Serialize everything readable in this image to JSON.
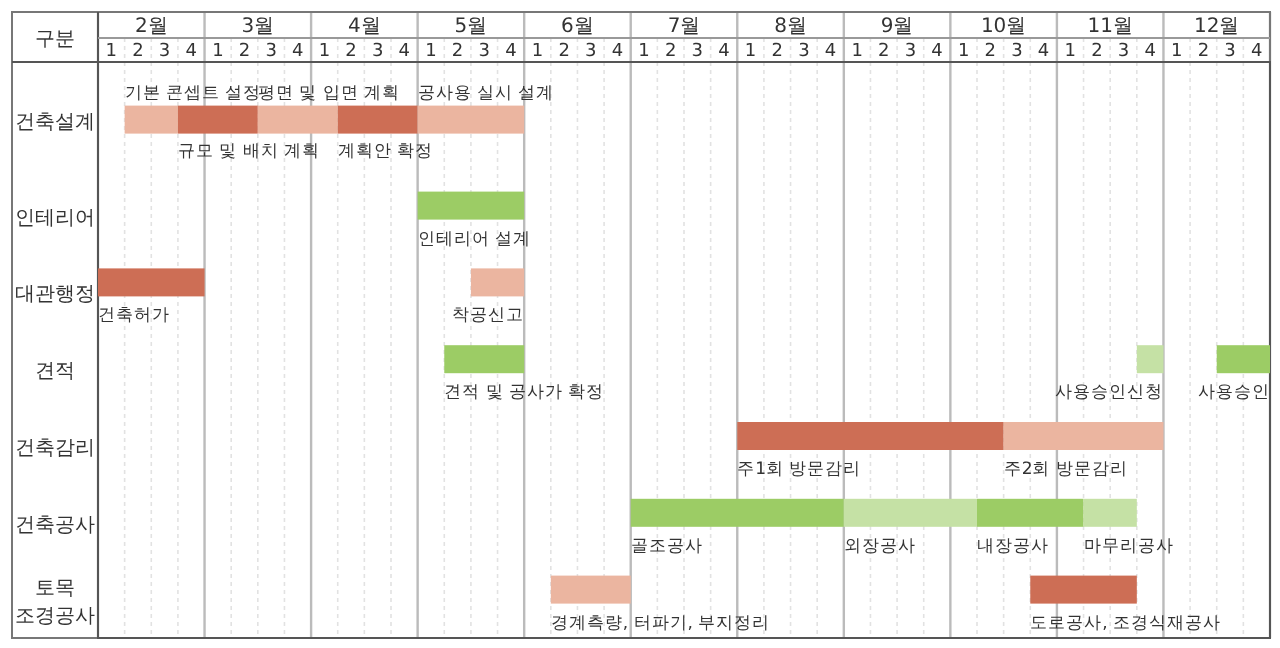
{
  "chart_data": {
    "type": "bar",
    "orientation": "horizontal",
    "ylabel": "구분",
    "categories": [
      "건축설계",
      "인테리어",
      "대관행정",
      "견적",
      "건축감리",
      "건축공사",
      "토목\n조경공사"
    ],
    "xlim": [
      1.5,
      12.5
    ],
    "xticks": [
      {
        "value": 2,
        "label": "2월"
      },
      {
        "value": 3,
        "label": "3월"
      },
      {
        "value": 4,
        "label": "4월"
      },
      {
        "value": 5,
        "label": "5월"
      },
      {
        "value": 6,
        "label": "6월"
      },
      {
        "value": 7,
        "label": "7월"
      },
      {
        "value": 8,
        "label": "8월"
      },
      {
        "value": 9,
        "label": "9월"
      },
      {
        "value": 10,
        "label": "10월"
      },
      {
        "value": 11,
        "label": "11월"
      },
      {
        "value": 12,
        "label": "12월"
      }
    ],
    "grid": "x",
    "series": [
      {
        "base": [
          1.75,
          4.5,
          1.5,
          4.75,
          7.5,
          6.5,
          5.75
        ],
        "values": [
          0.5,
          1,
          1,
          0.75,
          2.5,
          2,
          0.75
        ],
        "colors": [
          "#ebb5a0",
          "#9ccc65",
          "#cd6e55",
          "#9ccc65",
          "#cd6e55",
          "#9ccc65",
          "#ebb5a0"
        ]
      },
      {
        "base": [
          2.25,
          null,
          5,
          11.25,
          10,
          8.5,
          10.25
        ],
        "values": [
          0.75,
          null,
          0.5,
          0.25,
          1.5,
          1.25,
          1
        ],
        "colors": [
          "#cd6e55",
          null,
          "#ebb5a0",
          "#c5e1a5",
          "#ebb5a0",
          "#c5e1a5",
          "#cd6e55"
        ]
      },
      {
        "base": [
          3,
          null,
          null,
          12,
          null,
          9.75,
          null
        ],
        "values": [
          0.75,
          null,
          null,
          0.5,
          null,
          1,
          null
        ],
        "colors": [
          "#ebb5a0",
          null,
          null,
          "#9ccc65",
          null,
          "#9ccc65",
          null
        ]
      },
      {
        "base": [
          3.75,
          null,
          null,
          null,
          null,
          10.75,
          null
        ],
        "values": [
          0.75,
          null,
          null,
          null,
          null,
          0.5,
          null
        ],
        "colors": [
          "#cd6e55",
          null,
          null,
          null,
          null,
          "#c5e1a5",
          null
        ]
      },
      {
        "base": [
          4.5,
          null,
          null,
          null,
          null,
          null,
          null
        ],
        "values": [
          1,
          null,
          null,
          null,
          null,
          null,
          null
        ],
        "colors": [
          "#ebb5a0",
          null,
          null,
          null,
          null,
          null,
          null
        ]
      }
    ],
    "annotations": [
      {
        "text": "기본 콘셉트 설정",
        "x": 1.75,
        "y": "건축설계"
      },
      {
        "text": "규모 및 배치 계획",
        "x": 2.25,
        "y": "건축설계"
      },
      {
        "text": "평면 및 입면 계획",
        "x": 3,
        "y": "건축설계"
      },
      {
        "text": "계획안 확정",
        "x": 3.75,
        "y": "건축설계"
      },
      {
        "text": "공사용 실시 설계",
        "x": 4.5,
        "y": "건축설계"
      },
      {
        "text": "인테리어 설계",
        "x": 4.5,
        "y": "인테리어"
      },
      {
        "text": "건축허가",
        "x": 1.5,
        "y": "대관행정"
      },
      {
        "text": "착공신고",
        "x": 5.5,
        "y": "대관행정"
      },
      {
        "text": "견적 및 공사가 확정",
        "x": 4.75,
        "y": "견적"
      },
      {
        "text": "사용승인신청",
        "x": 11.5,
        "y": "견적"
      },
      {
        "text": "사용승인",
        "x": 12.5,
        "y": "견적"
      },
      {
        "text": "주1회 방문감리",
        "x": 7.5,
        "y": "건축감리"
      },
      {
        "text": "주2회 방문감리",
        "x": 10,
        "y": "건축감리"
      },
      {
        "text": "골조공사",
        "x": 6.5,
        "y": "건축공사"
      },
      {
        "text": "외장공사",
        "x": 8.5,
        "y": "건축공사"
      },
      {
        "text": "내장공사",
        "x": 9.75,
        "y": "건축공사"
      },
      {
        "text": "마무리공사",
        "x": 10.75,
        "y": "건축공사"
      },
      {
        "text": "경계측량, 터파기, 부지정리",
        "x": 5.75,
        "y": "토목\n조경공사"
      },
      {
        "text": "도로공사, 조경식재공사",
        "x": 10.25,
        "y": "토목\n조경공사"
      },
      "1",
      "2",
      "3",
      "4",
      "1",
      "2",
      "3",
      "4",
      "1",
      "2",
      "3",
      "4",
      "1",
      "2",
      "3",
      "4",
      "1",
      "2",
      "3",
      "4",
      "1",
      "2",
      "3",
      "4",
      "1",
      "2",
      "3",
      "4",
      "1",
      "2",
      "3",
      "4",
      "1",
      "2",
      "3",
      "4",
      "1",
      "2",
      "3",
      "4",
      "1",
      "2",
      "3",
      "4"
    ]
  }
}
